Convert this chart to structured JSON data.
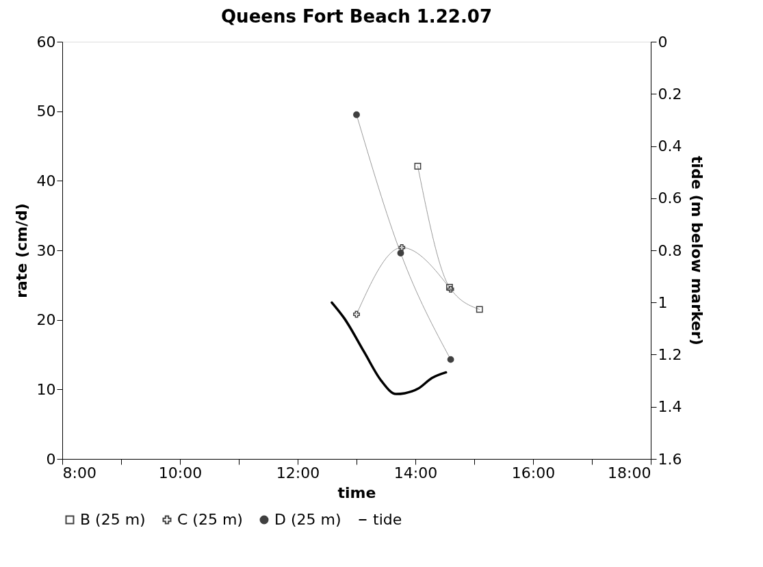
{
  "chart_data": {
    "type": "line",
    "title": "Queens Fort Beach 1.22.07",
    "xlabel": "time",
    "ylabel": "rate (cm/d)",
    "y2label": "tide (m below marker)",
    "xlim": [
      8,
      18
    ],
    "xticks": [
      {
        "value": 8,
        "label": "8:00"
      },
      {
        "value": 9,
        "label": null
      },
      {
        "value": 10,
        "label": "10:00"
      },
      {
        "value": 11,
        "label": null
      },
      {
        "value": 12,
        "label": "12:00"
      },
      {
        "value": 13,
        "label": null
      },
      {
        "value": 14,
        "label": "14:00"
      },
      {
        "value": 15,
        "label": null
      },
      {
        "value": 16,
        "label": "16:00"
      },
      {
        "value": 17,
        "label": null
      },
      {
        "value": 18,
        "label": "18:00"
      }
    ],
    "ylim": [
      0,
      60
    ],
    "yticks": [
      0,
      10,
      20,
      30,
      40,
      50,
      60
    ],
    "y2lim": [
      1.6,
      0
    ],
    "y2ticks": [
      0,
      0.2,
      0.4,
      0.6,
      0.8,
      1,
      1.2,
      1.4,
      1.6
    ],
    "grid": false,
    "legend": "bottom",
    "series": [
      {
        "name": "B (25 m)",
        "color": "#404040",
        "marker": "square",
        "x": [
          14.04,
          14.58,
          15.09
        ],
        "values": [
          42.1,
          24.7,
          21.5
        ]
      },
      {
        "name": "C (25 m)",
        "color": "#404040",
        "marker": "cross",
        "x": [
          13.0,
          13.77,
          14.6
        ],
        "values": [
          20.8,
          30.4,
          24.4
        ]
      },
      {
        "name": "D (25 m)",
        "color": "#404040",
        "marker": "circle",
        "x": [
          13.0,
          13.75,
          14.6
        ],
        "values": [
          49.5,
          29.6,
          14.3
        ]
      },
      {
        "name": "tide",
        "color": "#000000",
        "marker": "none",
        "axis": "y2",
        "x": [
          12.58,
          12.79,
          13.13,
          13.42,
          13.67,
          13.82,
          14.05,
          14.28,
          14.52
        ],
        "values": [
          1.0,
          1.06,
          1.19,
          1.3,
          1.351,
          1.348,
          1.33,
          1.29,
          1.268
        ]
      }
    ]
  }
}
